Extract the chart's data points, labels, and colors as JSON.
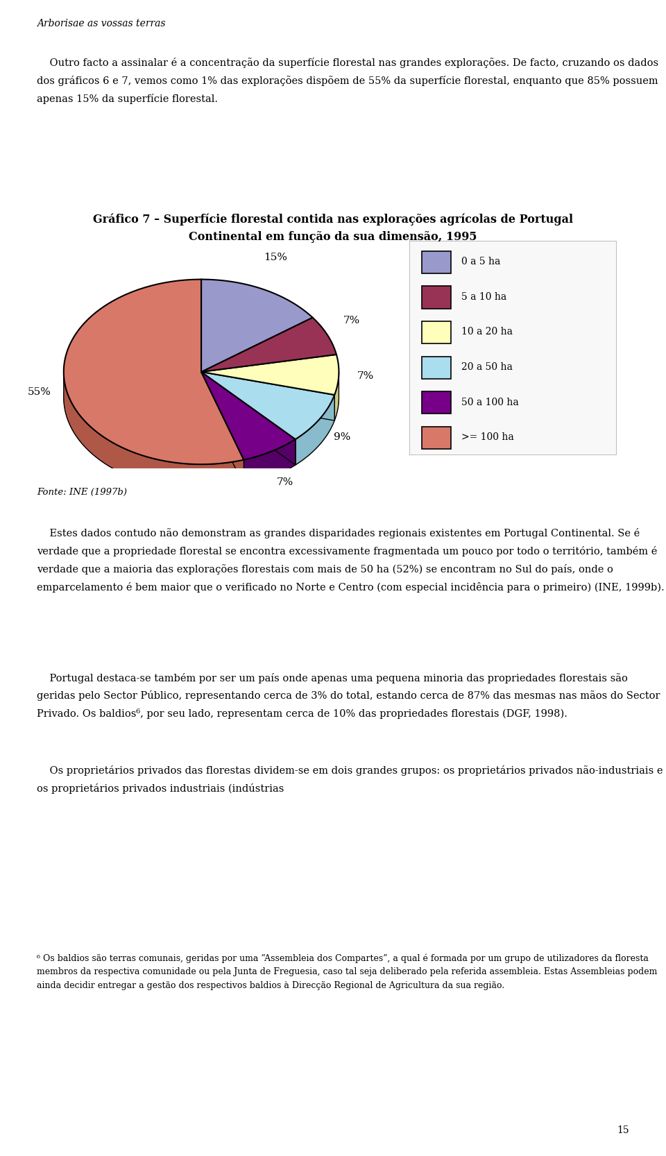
{
  "header": "Arborisae as vossas terras",
  "title_line1": "Gráfico 7 – Superfície florestal contida nas explorações agrícolas de Portugal",
  "title_line2": "Continental em função da sua dimensão, 1995",
  "source": "Fonte: INE (1997b)",
  "slices": [
    15,
    7,
    7,
    9,
    7,
    55
  ],
  "pct_labels": [
    "15%",
    "7%",
    "7%",
    "9%",
    "7%",
    "55%"
  ],
  "legend_labels": [
    "0 a 5 ha",
    "5 a 10 ha",
    "10 a 20 ha",
    "20 a 50 ha",
    "50 a 100 ha",
    ">= 100 ha"
  ],
  "colors_top": [
    "#9999CC",
    "#993355",
    "#FFFFBB",
    "#AADDEE",
    "#770088",
    "#D87868"
  ],
  "colors_side": [
    "#7777AA",
    "#771133",
    "#CCCC88",
    "#88BBCC",
    "#550066",
    "#B05848"
  ],
  "background": "#ffffff",
  "para1": "    Outro facto a assinalar é a concentração da superfície florestal nas grandes explorações. De facto, cruzando os dados dos gráficos 6 e 7, vemos como 1% das explorações dispõem de 55% da superfície florestal, enquanto que 85% possuem apenas 15% da superfície florestal.",
  "para2": "    Estes dados contudo não demonstram as grandes disparidades regionais existentes em Portugal Continental. Se é verdade que a propriedade florestal se encontra excessivamente fragmentada um pouco por todo o território, também é verdade que a maioria das explorações florestais com mais de 50 ha (52%) se encontram no Sul do país, onde o emparcelamento é bem maior que o verificado no Norte e Centro (com especial incidência para o primeiro) (INE, 1999b).",
  "para3": "    Portugal destaca-se também por ser um país onde apenas uma pequena minoria das propriedades florestais são geridas pelo Sector Público, representando cerca de 3% do total, estando cerca de 87% das mesmas nas mãos do Sector Privado. Os baldios⁶, por seu lado, representam cerca de 10% das propriedades florestais (DGF, 1998).",
  "para4": "    Os proprietários privados das florestas dividem-se em dois grandes grupos: os proprietários privados não-industriais e os proprietários privados industriais (indústrias",
  "footnote": "⁶ Os baldios são terras comunais, geridas por uma “Assembleia dos Compartes”, a qual é formada por um grupo de utilizadores da floresta membros da respectiva comunidade ou pela Junta de Freguesia, caso tal seja deliberado pela referida assembleia. Estas Assembleias podem ainda decidir entregar a gestão dos respectivos baldios à Direcção Regional de Agricultura da sua região.",
  "page_num": "15"
}
